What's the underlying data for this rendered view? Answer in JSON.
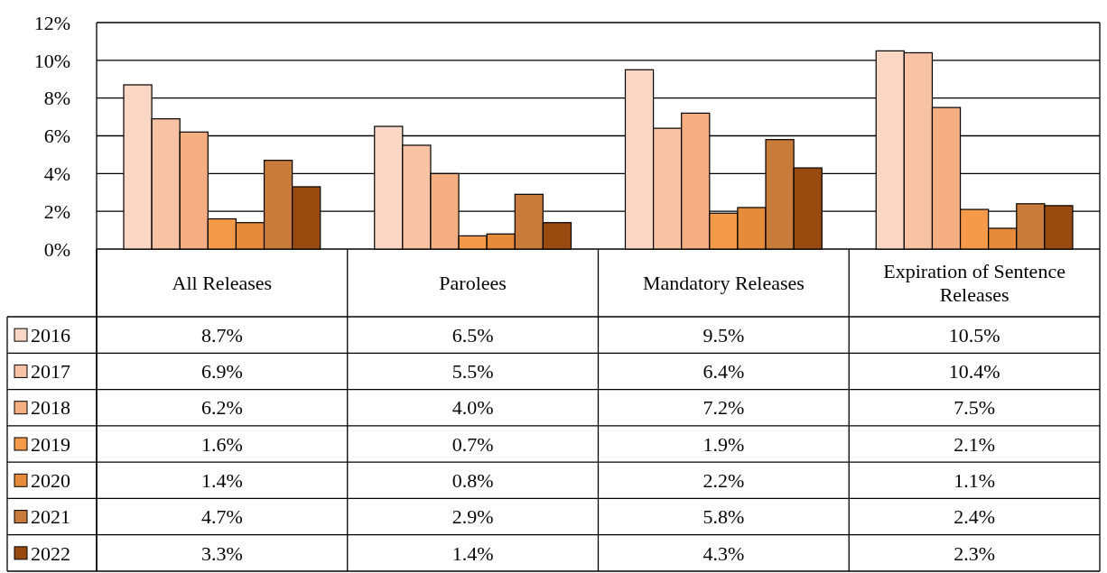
{
  "chart_data": {
    "type": "bar",
    "categories": [
      "All Releases",
      "Parolees",
      "Mandatory Releases",
      "Expiration of Sentence Releases"
    ],
    "series": [
      {
        "name": "2016",
        "color": "#fad7c4",
        "values": [
          8.7,
          6.5,
          9.5,
          10.5
        ],
        "value_labels": [
          "8.7%",
          "6.5%",
          "9.5%",
          "10.5%"
        ]
      },
      {
        "name": "2017",
        "color": "#f8c2a4",
        "values": [
          6.9,
          5.5,
          6.4,
          10.4
        ],
        "value_labels": [
          "6.9%",
          "5.5%",
          "6.4%",
          "10.4%"
        ]
      },
      {
        "name": "2018",
        "color": "#f5ad82",
        "values": [
          6.2,
          4.0,
          7.2,
          7.5
        ],
        "value_labels": [
          "6.2%",
          "4.0%",
          "7.2%",
          "7.5%"
        ]
      },
      {
        "name": "2019",
        "color": "#f59a48",
        "values": [
          1.6,
          0.7,
          1.9,
          2.1
        ],
        "value_labels": [
          "1.6%",
          "0.7%",
          "1.9%",
          "2.1%"
        ]
      },
      {
        "name": "2020",
        "color": "#e68a3c",
        "values": [
          1.4,
          0.8,
          2.2,
          1.1
        ],
        "value_labels": [
          "1.4%",
          "0.8%",
          "2.2%",
          "1.1%"
        ]
      },
      {
        "name": "2021",
        "color": "#c97b3b",
        "values": [
          4.7,
          2.9,
          5.8,
          2.4
        ],
        "value_labels": [
          "4.7%",
          "2.9%",
          "5.8%",
          "2.4%"
        ]
      },
      {
        "name": "2022",
        "color": "#994a0f",
        "values": [
          3.3,
          1.4,
          4.3,
          2.3
        ],
        "value_labels": [
          "3.3%",
          "1.4%",
          "4.3%",
          "2.3%"
        ]
      }
    ],
    "ylim": [
      0,
      12
    ],
    "yticks": [
      {
        "value": 0,
        "label": "0%"
      },
      {
        "value": 2,
        "label": "2%"
      },
      {
        "value": 4,
        "label": "4%"
      },
      {
        "value": 6,
        "label": "6%"
      },
      {
        "value": 8,
        "label": "8%"
      },
      {
        "value": 10,
        "label": "10%"
      },
      {
        "value": 12,
        "label": "12%"
      }
    ],
    "grid": "y",
    "legend": "bottom left"
  }
}
